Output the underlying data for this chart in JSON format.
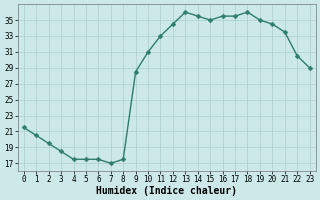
{
  "x": [
    0,
    1,
    2,
    3,
    4,
    5,
    6,
    7,
    8,
    9,
    10,
    11,
    12,
    13,
    14,
    15,
    16,
    17,
    18,
    19,
    20,
    21,
    22,
    23
  ],
  "y": [
    21.5,
    20.5,
    19.5,
    18.5,
    17.5,
    17.5,
    17.5,
    17.0,
    17.5,
    28.5,
    31.0,
    33.0,
    34.5,
    36.0,
    35.5,
    35.0,
    35.5,
    35.5,
    36.0,
    35.0,
    34.5,
    33.5,
    30.5,
    29.0
  ],
  "line_color": "#2e7d6e",
  "marker": "D",
  "marker_size": 2.5,
  "bg_color": "#cce8e8",
  "grid_color": "#aacfcf",
  "xlabel": "Humidex (Indice chaleur)",
  "xlim": [
    -0.5,
    23.5
  ],
  "ylim": [
    16,
    37
  ],
  "yticks": [
    17,
    19,
    21,
    23,
    25,
    27,
    29,
    31,
    33,
    35
  ],
  "xticks": [
    0,
    1,
    2,
    3,
    4,
    5,
    6,
    7,
    8,
    9,
    10,
    11,
    12,
    13,
    14,
    15,
    16,
    17,
    18,
    19,
    20,
    21,
    22,
    23
  ],
  "tick_fontsize": 5.5,
  "xlabel_fontsize": 7,
  "linewidth": 1.0
}
